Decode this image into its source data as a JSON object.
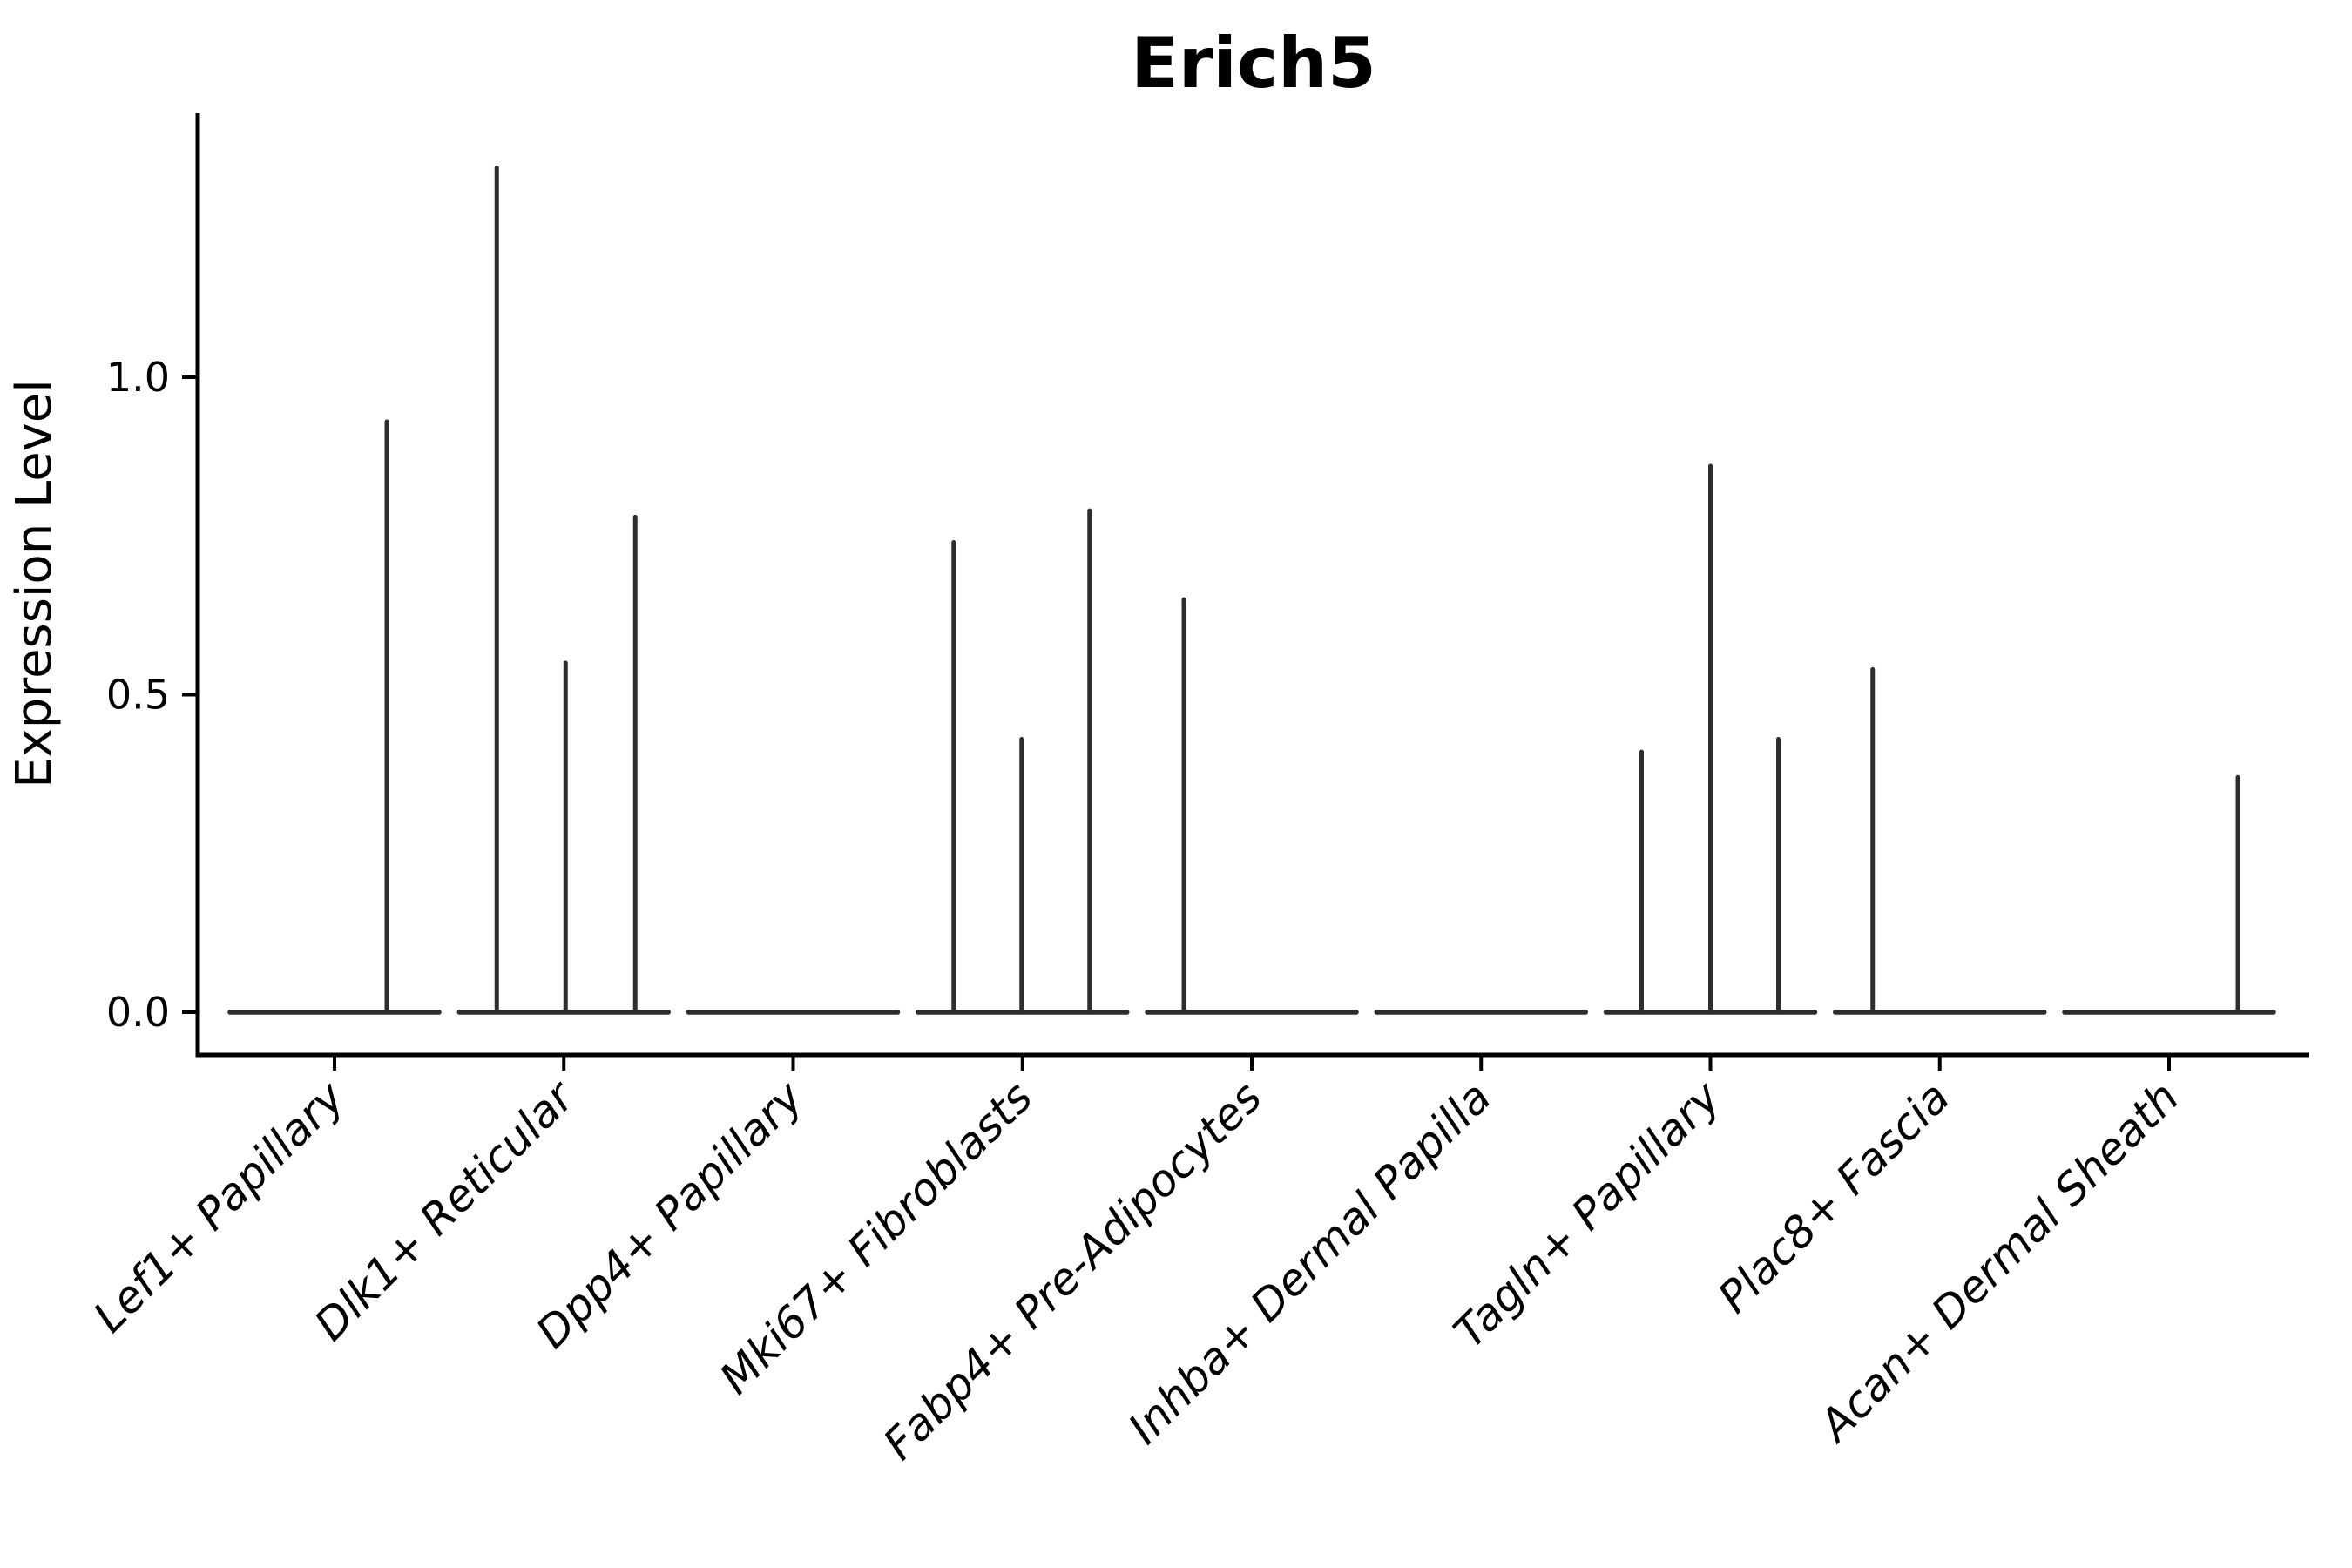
{
  "page": {
    "background": "#ffffff"
  },
  "chart_data": {
    "type": "violin",
    "title": "Erich5",
    "ylabel": "Expression Level",
    "yticks": [
      0.0,
      0.5,
      1.0
    ],
    "ylim": [
      -0.07,
      1.42
    ],
    "grid": false,
    "legend": "none",
    "x_tick_rotation": 45,
    "categories": [
      "Lef1+ Papillary",
      "Dlk1+ Reticular",
      "Dpp4+ Papillary",
      "Mki67+ Fibroblasts",
      "Fabp4+ Pre-Adipocytes",
      "Inhba+ Dermal Papilla",
      "Tagln+ Papillary",
      "Plac8+ Fascia",
      "Acan+ Dermal Sheath"
    ],
    "series": [
      {
        "name": "Lef1+ Papillary",
        "baseline_value": 0.0,
        "spikes": [
          {
            "dx": 60,
            "value": 0.93
          }
        ]
      },
      {
        "name": "Dlk1+ Reticular",
        "baseline_value": 0.0,
        "spikes": [
          {
            "dx": -77,
            "value": 1.33
          },
          {
            "dx": 2,
            "value": 0.55
          },
          {
            "dx": 82,
            "value": 0.78
          }
        ]
      },
      {
        "name": "Dpp4+ Papillary",
        "baseline_value": 0.0,
        "spikes": []
      },
      {
        "name": "Mki67+ Fibroblasts",
        "baseline_value": 0.0,
        "spikes": [
          {
            "dx": -79,
            "value": 0.74
          },
          {
            "dx": -1,
            "value": 0.43
          },
          {
            "dx": 77,
            "value": 0.79
          }
        ]
      },
      {
        "name": "Fabp4+ Pre-Adipocytes",
        "baseline_value": 0.0,
        "spikes": [
          {
            "dx": -78,
            "value": 0.65
          }
        ]
      },
      {
        "name": "Inhba+ Dermal Papilla",
        "baseline_value": 0.0,
        "spikes": []
      },
      {
        "name": "Tagln+ Papillary",
        "baseline_value": 0.0,
        "spikes": [
          {
            "dx": -79,
            "value": 0.41
          },
          {
            "dx": 0,
            "value": 0.86
          },
          {
            "dx": 78,
            "value": 0.43
          }
        ]
      },
      {
        "name": "Plac8+ Fascia",
        "baseline_value": 0.0,
        "spikes": [
          {
            "dx": -77,
            "value": 0.54
          }
        ]
      },
      {
        "name": "Acan+ Dermal Sheath",
        "baseline_value": 0.0,
        "spikes": [
          {
            "dx": 79,
            "value": 0.37
          }
        ]
      }
    ],
    "colors": {
      "violin_line": "#2d2d2d",
      "axis": "#000000",
      "text": "#000000",
      "background": "#ffffff"
    }
  }
}
